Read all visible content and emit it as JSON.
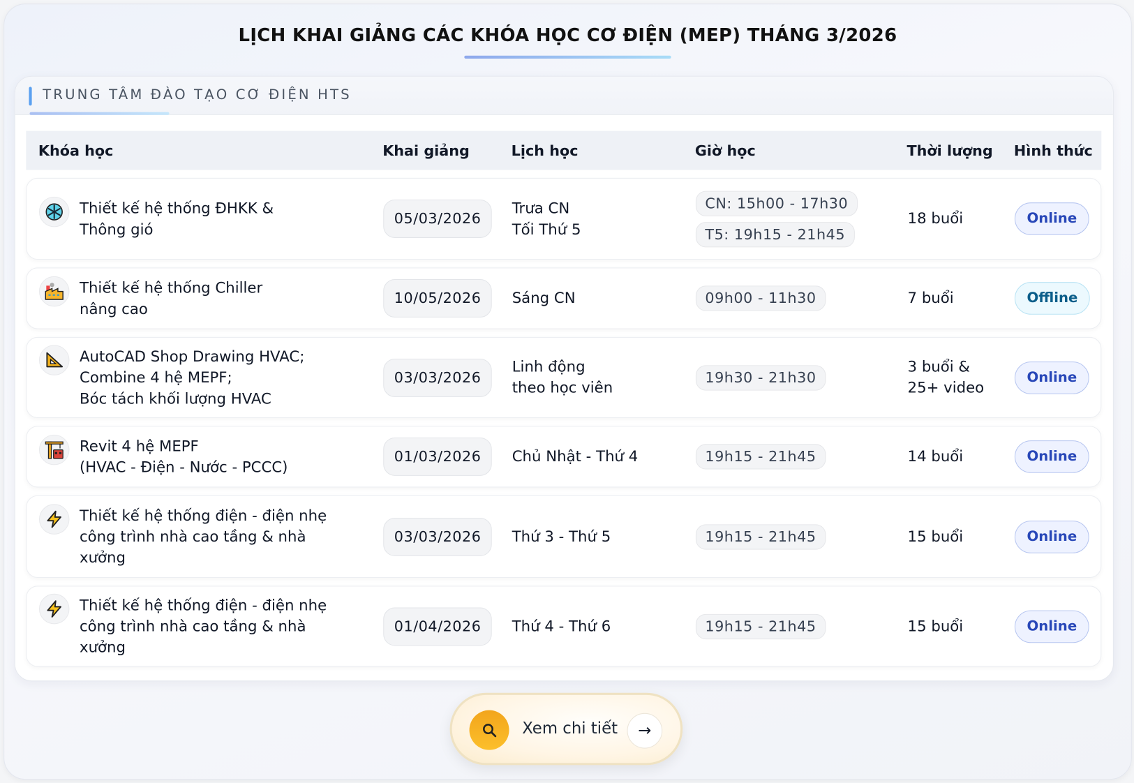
{
  "title": "LỊCH KHAI GIẢNG CÁC KHÓA HỌC CƠ ĐIỆN (MEP) THÁNG 3/2026",
  "card_label": "TRUNG TÂM ĐÀO TẠO CƠ ĐIỆN HTS",
  "columns": [
    "Khóa học",
    "Khai giảng",
    "Lịch học",
    "Giờ học",
    "Thời lượng",
    "Hình thức"
  ],
  "rows": [
    {
      "icon": "snowflake-icon",
      "course": "Thiết kế hệ thống ĐHKK &\nThông gió",
      "date": "05/03/2026",
      "schedule": "Trưa CN\nTối Thứ 5",
      "times": [
        "CN: 15h00 - 17h30",
        "T5: 19h15 - 21h45"
      ],
      "duration": "18 buổi",
      "format": "Online"
    },
    {
      "icon": "factory-icon",
      "course": "Thiết kế hệ thống Chiller\nnâng cao",
      "date": "10/05/2026",
      "schedule": "Sáng CN",
      "times": [
        "09h00 - 11h30"
      ],
      "duration": "7 buổi",
      "format": "Offline"
    },
    {
      "icon": "triangle-ruler-icon",
      "course": "AutoCAD Shop Drawing HVAC;\nCombine 4 hệ MEPF;\nBóc tách khối lượng HVAC",
      "date": "03/03/2026",
      "schedule": "Linh động\ntheo học viên",
      "times": [
        "19h30 - 21h30"
      ],
      "duration": "3 buổi &\n25+ video",
      "format": "Online"
    },
    {
      "icon": "construction-crane-icon",
      "course": "Revit 4 hệ MEPF\n(HVAC - Điện - Nước - PCCC)",
      "date": "01/03/2026",
      "schedule": "Chủ Nhật - Thứ 4",
      "times": [
        "19h15 - 21h45"
      ],
      "duration": "14 buổi",
      "format": "Online"
    },
    {
      "icon": "lightning-icon",
      "course": "Thiết kế hệ thống điện - điện nhẹ\ncông trình nhà cao tầng & nhà\nxưởng",
      "date": "03/03/2026",
      "schedule": "Thứ 3 - Thứ 5",
      "times": [
        "19h15 - 21h45"
      ],
      "duration": "15 buổi",
      "format": "Online"
    },
    {
      "icon": "lightning-icon",
      "course": "Thiết kế hệ thống điện - điện nhẹ\ncông trình nhà cao tầng & nhà\nxưởng",
      "date": "01/04/2026",
      "schedule": "Thứ 4 - Thứ 6",
      "times": [
        "19h15 - 21h45"
      ],
      "duration": "15 buổi",
      "format": "Online"
    }
  ],
  "cta": {
    "label": "Xem chi tiết",
    "arrow": "→",
    "icon": "search-icon"
  },
  "colors": {
    "accent": "#5aa0f0",
    "online_text": "#2847b8",
    "offline_text": "#0b5e8a",
    "cta_orange": "#f5ad20"
  }
}
